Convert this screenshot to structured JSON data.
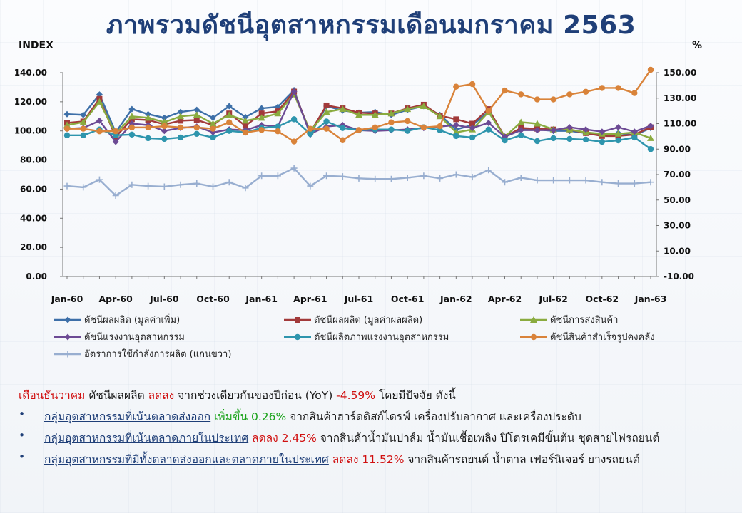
{
  "page": {
    "title": "ภาพรวมดัชนีอุตสาหกรรมเดือนมกราคม  2563"
  },
  "chart_data": {
    "type": "line",
    "left_axis_unit": "INDEX",
    "right_axis_unit": "%",
    "x": [
      "Jan-60",
      "Feb-60",
      "Mar-60",
      "Apr-60",
      "May-60",
      "Jun-60",
      "Jul-60",
      "Aug-60",
      "Sep-60",
      "Oct-60",
      "Nov-60",
      "Dec-60",
      "Jan-61",
      "Feb-61",
      "Mar-61",
      "Apr-61",
      "May-61",
      "Jun-61",
      "Jul-61",
      "Aug-61",
      "Sep-61",
      "Oct-61",
      "Nov-61",
      "Dec-61",
      "Jan-62",
      "Feb-62",
      "Mar-62",
      "Apr-62",
      "May-62",
      "Jun-62",
      "Jul-62",
      "Aug-62",
      "Sep-62",
      "Oct-62",
      "Nov-62",
      "Dec-62",
      "Jan-63"
    ],
    "x_tick_labels": [
      "Jan-60",
      "Apr-60",
      "Jul-60",
      "Oct-60",
      "Jan-61",
      "Apr-61",
      "Jul-61",
      "Oct-61",
      "Jan-62",
      "Apr-62",
      "Jul-62",
      "Oct-62",
      "Jan-63"
    ],
    "y_left": {
      "min": 0,
      "max": 140,
      "step": 20,
      "tick_labels": [
        "0.00",
        "20.00",
        "40.00",
        "60.00",
        "80.00",
        "100.00",
        "120.00",
        "140.00"
      ]
    },
    "y_right": {
      "min": -10,
      "max": 150,
      "step": 20,
      "tick_labels": [
        "-10.00",
        "10.00",
        "30.00",
        "50.00",
        "70.00",
        "90.00",
        "110.00",
        "130.00",
        "150.00"
      ]
    },
    "legend_position": "bottom",
    "series": [
      {
        "name": "ดัชนีผลผลิต (มูลค่าเพิ่ม)",
        "axis": "left",
        "marker": "diamond",
        "color": "#3d6fa8",
        "values": [
          111.5,
          111,
          125,
          99,
          115,
          111.5,
          109,
          113,
          114.5,
          109,
          117,
          109.5,
          115.5,
          116.5,
          128,
          97.5,
          117,
          114,
          112.5,
          113,
          111,
          114.5,
          117,
          111,
          101,
          104,
          113,
          96,
          101,
          101,
          100,
          100,
          98.5,
          97,
          98.5,
          97,
          102
        ]
      },
      {
        "name": "ดัชนีผลผลิต (มูลค่าผลผลิต)",
        "axis": "left",
        "marker": "square",
        "color": "#a23a3a",
        "values": [
          105.5,
          106.5,
          122,
          96,
          108,
          107.5,
          104.5,
          107,
          107.5,
          104,
          112,
          103.5,
          112,
          113.5,
          127,
          99,
          117.5,
          115.5,
          112.5,
          112,
          112,
          115.5,
          118,
          110.5,
          108,
          105,
          115,
          96,
          102,
          101.5,
          101,
          101,
          98.5,
          96.5,
          96.5,
          97.5,
          102.5
        ]
      },
      {
        "name": "ดัชนีการส่งสินค้า",
        "axis": "left",
        "marker": "triangle",
        "color": "#8aab3f",
        "values": [
          104,
          106,
          120,
          98,
          110,
          109,
          106,
          110,
          111,
          105,
          111,
          107,
          109,
          112,
          125,
          100,
          113,
          115,
          111,
          111,
          112,
          115,
          117,
          110,
          99,
          101,
          113,
          96,
          106,
          105,
          101,
          101,
          99,
          98,
          98,
          99,
          95
        ]
      },
      {
        "name": "ดัชนีแรงงานอุตสาหกรรม",
        "axis": "left",
        "marker": "diamond",
        "color": "#6c4a94",
        "values": [
          101.5,
          102,
          107,
          92.5,
          105,
          104,
          100,
          102,
          103,
          99,
          101,
          100.5,
          104,
          103,
          127,
          98,
          103,
          104,
          100.5,
          100,
          100.5,
          101,
          102,
          103,
          104,
          102,
          105.5,
          96,
          100.5,
          100.5,
          100.5,
          102.5,
          101,
          99.5,
          102.5,
          99.5,
          103.5
        ]
      },
      {
        "name": "ดัชนีผลิตภาพแรงงานอุตสาหกรรม",
        "axis": "left",
        "marker": "circle",
        "color": "#2e95ad",
        "values": [
          97,
          97,
          101,
          97,
          97.5,
          95,
          94.5,
          95.5,
          98,
          95.5,
          100,
          99,
          102,
          103,
          108,
          98,
          106.5,
          102,
          100.5,
          101,
          101,
          100,
          102.5,
          100.5,
          96.5,
          95.5,
          101,
          93.5,
          97,
          93,
          95,
          94.5,
          94,
          92.5,
          93.5,
          95.5,
          87.5
        ]
      },
      {
        "name": "ดัชนีสินค้าสำเร็จรูปคงคลัง",
        "axis": "right",
        "marker": "circle",
        "color": "#d9833a",
        "values": [
          106,
          106,
          104,
          104,
          107,
          107,
          108,
          107,
          107,
          106,
          111,
          103,
          105,
          104,
          96,
          106,
          106,
          97,
          105,
          107,
          111,
          112,
          107,
          108,
          139,
          141,
          120,
          136,
          133,
          129,
          129,
          133,
          135,
          138,
          138,
          134,
          158
        ]
      },
      {
        "name": "อัตราการใช้กำลังการผลิต (แกนขวา)",
        "axis": "right",
        "marker": "plus",
        "color": "#98aed0",
        "values": [
          61,
          60,
          66,
          53.5,
          62,
          61,
          60.5,
          62,
          63,
          60.5,
          64,
          59.5,
          69,
          69,
          75,
          61,
          69,
          68.5,
          67,
          66.5,
          66.5,
          67.5,
          69,
          67,
          70,
          68,
          73.5,
          64,
          67.5,
          65.5,
          65.5,
          65.5,
          65.5,
          64,
          63,
          63,
          64
        ]
      }
    ]
  },
  "summary": {
    "line1": {
      "month": "เดือนธันวาคม",
      "text1": " ดัชนีผลผลิต ",
      "direction": "ลดลง",
      "text2": " จากช่วงเดียวกันของปีก่อน (YoY) ",
      "value": "-4.59%",
      "text3": " โดยมีปัจจัย ดังนี้"
    },
    "bullets": [
      {
        "bullet": "•",
        "group": "กลุ่มอุตสาหกรรมที่เน้นตลาดส่งออก",
        "direction": " เพิ่มขึ้น 0.26%",
        "tail": " จากสินค้าฮาร์ดดิสก์ไดรฟ์ เครื่องปรับอากาศ และเครื่องประดับ"
      },
      {
        "bullet": "•",
        "group": "กลุ่มอุตสาหกรรมที่เน้นตลาดภายในประเทศ",
        "direction": " ลดลง  2.45%",
        "tail": " จากสินค้าน้ำมันปาล์ม น้ำมันเชื้อเพลิง ปิโตรเคมีขั้นต้น ชุดสายไฟรถยนต์"
      },
      {
        "bullet": "•",
        "group": "กลุ่มอุตสาหกรรมที่มีทั้งตลาดส่งออกและตลาดภายในประเทศ",
        "direction": " ลดลง  11.52%",
        "tail": " จากสินค้ารถยนต์ น้ำตาล เฟอร์นิเจอร์ ยางรถยนต์"
      }
    ]
  }
}
